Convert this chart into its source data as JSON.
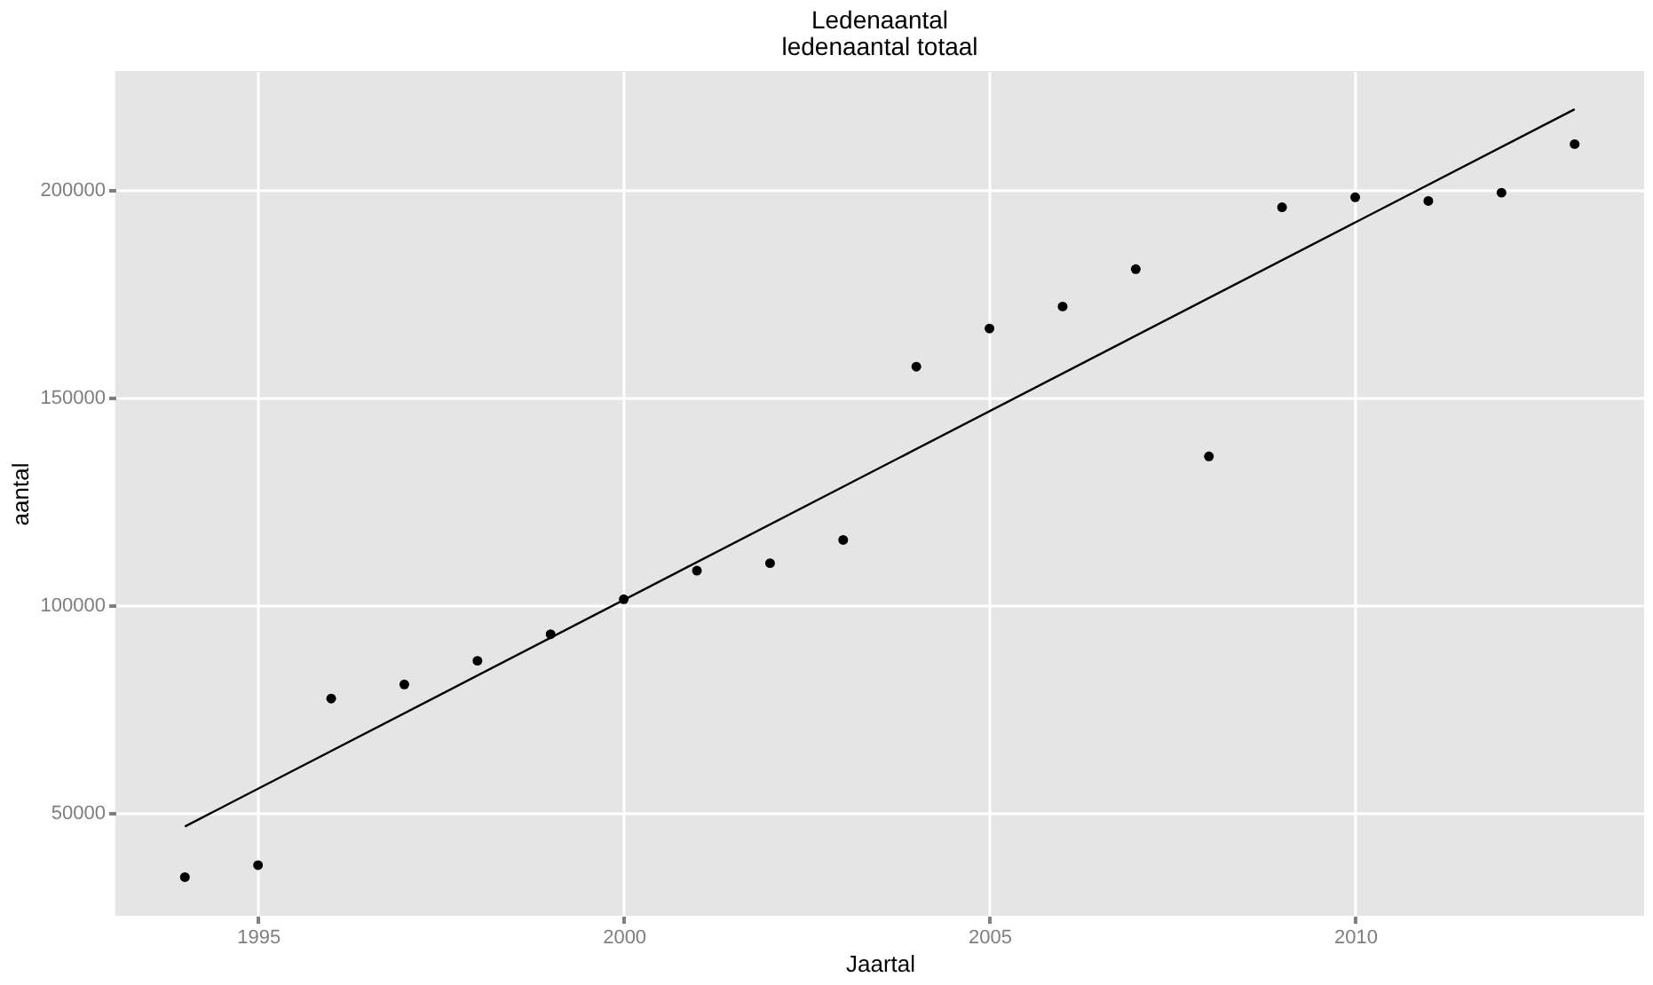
{
  "chart_data": {
    "type": "scatter",
    "title": "Ledenaantal",
    "subtitle": "ledenaantal totaal",
    "xlabel": "Jaartal",
    "ylabel": "aantal",
    "x": [
      1994,
      1995,
      1996,
      1997,
      1998,
      1999,
      2000,
      2001,
      2002,
      2003,
      2004,
      2005,
      2006,
      2007,
      2008,
      2009,
      2010,
      2011,
      2012,
      2013
    ],
    "series": [
      {
        "color": "#000000",
        "marker": "circle",
        "values": [
          34600,
          37500,
          77600,
          81000,
          86700,
          93100,
          101500,
          108400,
          110200,
          115800,
          157500,
          166700,
          172000,
          181000,
          135900,
          195900,
          198300,
          197400,
          199400,
          211100
        ]
      },
      {
        "type": "line",
        "color": "#000000",
        "line_style": "solid",
        "x": [
          1994,
          2013
        ],
        "values": [
          46800,
          219500
        ]
      }
    ],
    "xlim": [
      1993.05,
      2013.95
    ],
    "ylim": [
      25300,
      228700
    ],
    "xticks": [
      1995,
      2000,
      2005,
      2010
    ],
    "yticks": [
      50000,
      100000,
      150000,
      200000
    ],
    "grid": true
  }
}
